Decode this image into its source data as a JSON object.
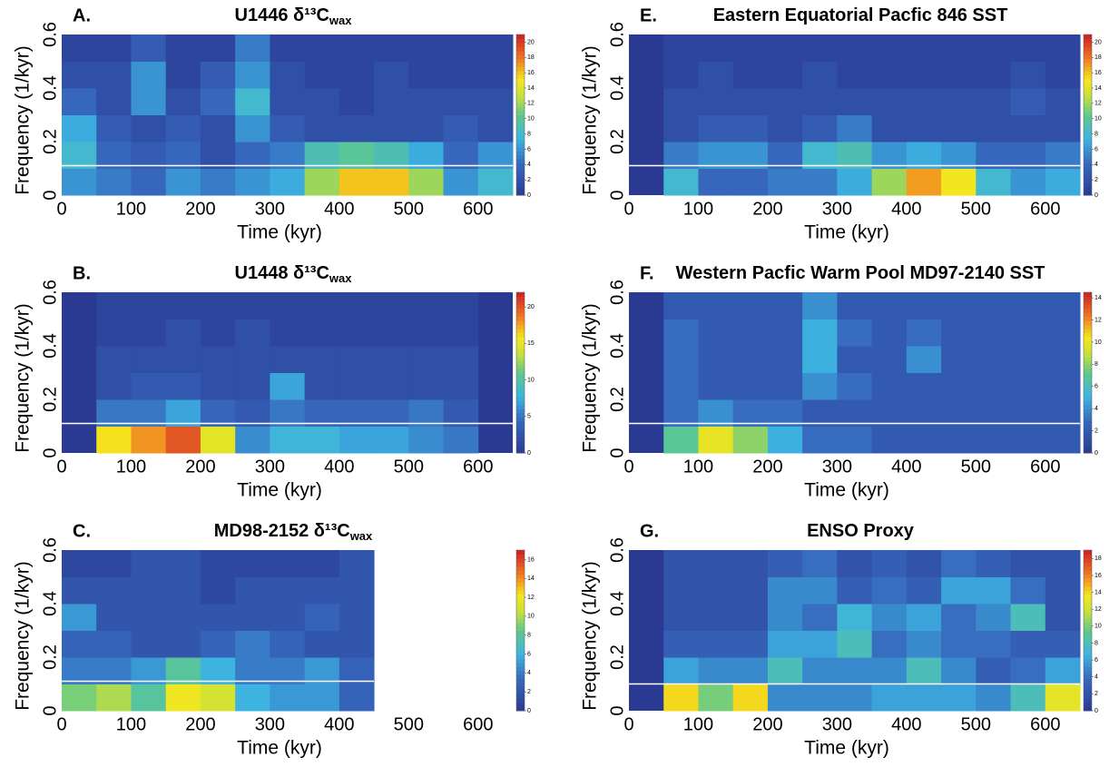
{
  "chart_data": [
    {
      "type": "heatmap",
      "label": "A.",
      "title": "U1446 δ¹³C",
      "title_sub": "wax",
      "xlabel": "Time (kyr)",
      "ylabel": "Frequency (1/kyr)",
      "xlim": [
        0,
        650
      ],
      "ylim": [
        0,
        0.6
      ],
      "xticks": [
        0,
        100,
        200,
        300,
        400,
        500,
        600
      ],
      "yticks": [
        0,
        0.2,
        0.4,
        0.6
      ],
      "zlim": [
        0,
        21
      ],
      "zticks": [
        0,
        2,
        4,
        6,
        8,
        10,
        12,
        14,
        16,
        18,
        20
      ],
      "hline": 0.11,
      "x_bins": [
        0,
        50,
        100,
        150,
        200,
        250,
        300,
        350,
        400,
        450,
        500,
        550,
        600,
        650
      ],
      "y_bins": [
        0,
        0.1,
        0.2,
        0.3,
        0.4,
        0.5,
        0.6
      ],
      "z": [
        [
          6,
          5,
          4,
          6,
          5,
          6,
          7,
          12,
          16,
          16,
          12,
          6,
          8
        ],
        [
          8,
          4,
          3,
          4,
          2,
          4,
          5,
          9,
          10,
          9,
          7,
          4,
          6
        ],
        [
          7,
          3,
          2,
          3,
          2,
          6,
          3,
          2,
          2,
          2,
          2,
          3,
          2
        ],
        [
          4,
          2,
          6,
          2,
          4,
          8,
          2,
          2,
          1,
          2,
          2,
          2,
          2
        ],
        [
          2,
          2,
          6,
          1,
          3,
          6,
          2,
          1,
          1,
          2,
          1,
          1,
          1
        ],
        [
          1,
          1,
          3,
          1,
          1,
          5,
          1,
          1,
          1,
          1,
          1,
          1,
          1
        ]
      ]
    },
    {
      "type": "heatmap",
      "label": "B.",
      "title": "U1448 δ¹³C",
      "title_sub": "wax",
      "xlabel": "Time (kyr)",
      "ylabel": "Frequency (1/kyr)",
      "xlim": [
        0,
        650
      ],
      "ylim": [
        0,
        0.6
      ],
      "xticks": [
        0,
        100,
        200,
        300,
        400,
        500,
        600
      ],
      "yticks": [
        0,
        0.2,
        0.4,
        0.6
      ],
      "zlim": [
        0,
        22
      ],
      "zticks": [
        0,
        5,
        10,
        15,
        20
      ],
      "hline": 0.11,
      "x_bins": [
        0,
        50,
        100,
        150,
        200,
        250,
        300,
        350,
        400,
        450,
        500,
        550,
        600,
        650
      ],
      "y_bins": [
        0,
        0.1,
        0.2,
        0.3,
        0.4,
        0.5,
        0.6
      ],
      "z": [
        [
          null,
          16,
          18,
          20,
          15,
          6,
          8,
          8,
          7,
          7,
          6,
          5,
          null
        ],
        [
          null,
          5,
          5,
          7,
          4,
          3,
          5,
          4,
          4,
          4,
          5,
          3,
          null
        ],
        [
          null,
          2,
          3,
          3,
          2,
          2,
          7,
          2,
          2,
          2,
          2,
          2,
          null
        ],
        [
          null,
          2,
          2,
          2,
          2,
          2,
          2,
          2,
          2,
          2,
          2,
          2,
          null
        ],
        [
          null,
          1,
          1,
          2,
          1,
          2,
          1,
          1,
          1,
          1,
          1,
          1,
          null
        ],
        [
          null,
          1,
          1,
          1,
          1,
          1,
          1,
          1,
          1,
          1,
          1,
          1,
          null
        ]
      ]
    },
    {
      "type": "heatmap",
      "label": "C.",
      "title": "MD98-2152 δ¹³C",
      "title_sub": "wax",
      "xlabel": "Time (kyr)",
      "ylabel": "Frequency (1/kyr)",
      "xlim": [
        0,
        650
      ],
      "ylim": [
        0,
        0.6
      ],
      "xticks": [
        0,
        100,
        200,
        300,
        400,
        500,
        600
      ],
      "yticks": [
        0,
        0.2,
        0.4,
        0.6
      ],
      "zlim": [
        0,
        17
      ],
      "zticks": [
        0,
        2,
        4,
        6,
        8,
        10,
        12,
        14,
        16
      ],
      "hline": 0.11,
      "x_bins": [
        0,
        50,
        100,
        150,
        200,
        250,
        300,
        350,
        400,
        450
      ],
      "y_bins": [
        0,
        0.1,
        0.2,
        0.3,
        0.4,
        0.5,
        0.6
      ],
      "z": [
        [
          9,
          10,
          8,
          12,
          11,
          6,
          5,
          5,
          3
        ],
        [
          4,
          4,
          5,
          8,
          6,
          4,
          4,
          5,
          3
        ],
        [
          3,
          3,
          2,
          2,
          3,
          4,
          3,
          2,
          2
        ],
        [
          5,
          2,
          2,
          2,
          2,
          2,
          2,
          3,
          2
        ],
        [
          2,
          2,
          2,
          2,
          1,
          2,
          2,
          2,
          2
        ],
        [
          1,
          1,
          2,
          2,
          1,
          1,
          1,
          1,
          2
        ]
      ]
    },
    {
      "type": "heatmap",
      "label": "E.",
      "title": "Eastern Equatorial Pacfic 846 SST",
      "xlabel": "Time (kyr)",
      "ylabel": "Frequency (1/kyr)",
      "xlim": [
        0,
        650
      ],
      "ylim": [
        0,
        0.6
      ],
      "xticks": [
        0,
        100,
        200,
        300,
        400,
        500,
        600
      ],
      "yticks": [
        0,
        0.2,
        0.4,
        0.6
      ],
      "zlim": [
        0,
        21
      ],
      "zticks": [
        0,
        2,
        4,
        6,
        8,
        10,
        12,
        14,
        16,
        18,
        20
      ],
      "hline": 0.11,
      "x_bins": [
        0,
        50,
        100,
        150,
        200,
        250,
        300,
        350,
        400,
        450,
        500,
        550,
        600,
        650
      ],
      "y_bins": [
        0,
        0.1,
        0.2,
        0.3,
        0.4,
        0.5,
        0.6
      ],
      "z": [
        [
          null,
          8,
          4,
          4,
          5,
          5,
          7,
          12,
          17,
          15,
          8,
          6,
          7
        ],
        [
          null,
          5,
          6,
          6,
          4,
          8,
          9,
          6,
          7,
          6,
          4,
          4,
          5
        ],
        [
          null,
          2,
          3,
          3,
          2,
          3,
          5,
          2,
          2,
          2,
          2,
          2,
          2
        ],
        [
          null,
          2,
          2,
          2,
          2,
          2,
          2,
          2,
          2,
          2,
          2,
          3,
          2
        ],
        [
          null,
          1,
          2,
          1,
          1,
          2,
          1,
          1,
          1,
          1,
          1,
          2,
          1
        ],
        [
          null,
          1,
          1,
          1,
          1,
          1,
          1,
          1,
          1,
          1,
          1,
          1,
          1
        ]
      ]
    },
    {
      "type": "heatmap",
      "label": "F.",
      "title": "Western Pacfic Warm Pool MD97-2140 SST",
      "xlabel": "Time (kyr)",
      "ylabel": "Frequency (1/kyr)",
      "xlim": [
        0,
        650
      ],
      "ylim": [
        0,
        0.6
      ],
      "xticks": [
        0,
        100,
        200,
        300,
        400,
        500,
        600
      ],
      "yticks": [
        0,
        0.2,
        0.4,
        0.6
      ],
      "zlim": [
        0,
        14.5
      ],
      "zticks": [
        0,
        2,
        4,
        6,
        8,
        10,
        12,
        14
      ],
      "hline": 0.11,
      "x_bins": [
        0,
        50,
        100,
        150,
        200,
        250,
        300,
        350,
        400,
        450,
        500,
        550,
        600,
        650
      ],
      "y_bins": [
        0,
        0.1,
        0.2,
        0.3,
        0.4,
        0.5,
        0.6
      ],
      "z": [
        [
          null,
          7,
          10,
          8,
          5,
          3,
          3,
          2,
          2,
          2,
          2,
          2,
          2
        ],
        [
          null,
          3,
          4,
          3,
          3,
          2,
          2,
          2,
          2,
          2,
          2,
          2,
          2
        ],
        [
          null,
          3,
          2,
          2,
          2,
          4,
          3,
          2,
          2,
          2,
          2,
          2,
          2
        ],
        [
          null,
          3,
          2,
          2,
          2,
          5,
          2,
          2,
          4,
          2,
          2,
          2,
          2
        ],
        [
          null,
          3,
          2,
          2,
          2,
          5,
          3,
          2,
          3,
          2,
          2,
          2,
          2
        ],
        [
          null,
          2,
          2,
          2,
          2,
          4,
          2,
          2,
          2,
          2,
          2,
          2,
          2
        ]
      ]
    },
    {
      "type": "heatmap",
      "label": "G.",
      "title": "ENSO Proxy",
      "xlabel": "Time (kyr)",
      "ylabel": "Frequency (1/kyr)",
      "xlim": [
        0,
        650
      ],
      "ylim": [
        0,
        0.6
      ],
      "xticks": [
        0,
        100,
        200,
        300,
        400,
        500,
        600
      ],
      "yticks": [
        0,
        0.2,
        0.4,
        0.6
      ],
      "zlim": [
        0,
        19
      ],
      "zticks": [
        0,
        2,
        4,
        6,
        8,
        10,
        12,
        14,
        16,
        18
      ],
      "hline": 0.1,
      "x_bins": [
        0,
        50,
        100,
        150,
        200,
        250,
        300,
        350,
        400,
        450,
        500,
        550,
        600,
        650
      ],
      "y_bins": [
        0,
        0.1,
        0.2,
        0.3,
        0.4,
        0.5,
        0.6
      ],
      "z": [
        [
          null,
          14,
          10,
          14,
          5,
          5,
          5,
          6,
          6,
          6,
          5,
          8,
          13
        ],
        [
          null,
          6,
          5,
          5,
          8,
          5,
          5,
          5,
          8,
          5,
          3,
          4,
          6
        ],
        [
          null,
          3,
          3,
          3,
          6,
          6,
          8,
          4,
          5,
          4,
          4,
          3,
          3
        ],
        [
          null,
          2,
          2,
          2,
          5,
          4,
          7,
          5,
          6,
          4,
          5,
          8,
          2
        ],
        [
          null,
          2,
          2,
          2,
          5,
          5,
          3,
          4,
          3,
          6,
          6,
          4,
          2
        ],
        [
          null,
          2,
          2,
          2,
          3,
          4,
          2,
          3,
          2,
          4,
          3,
          2,
          2
        ]
      ]
    }
  ]
}
